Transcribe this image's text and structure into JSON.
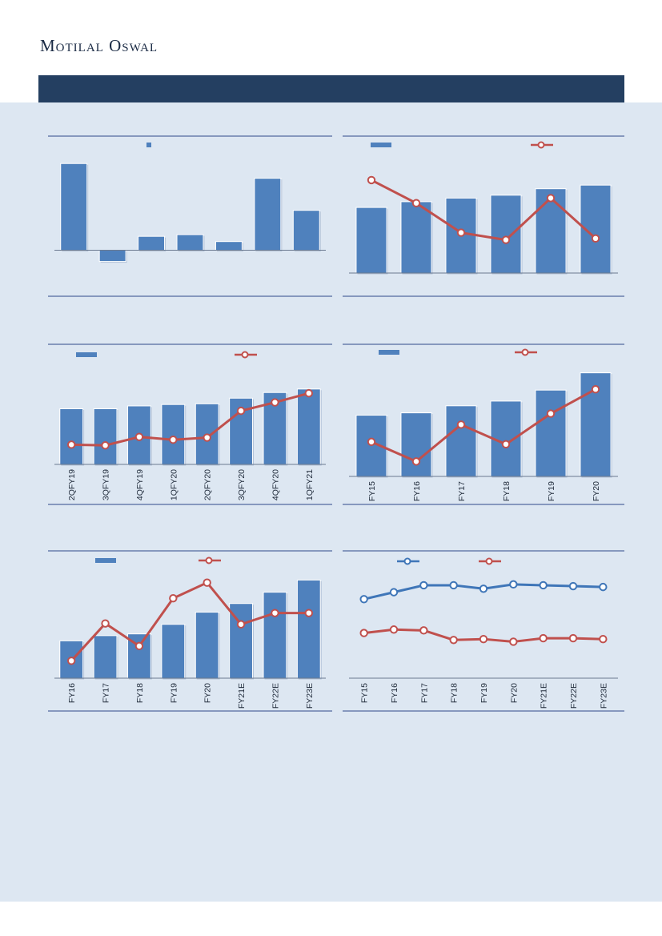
{
  "header": {
    "brand": "Motilal Oswal"
  },
  "chart_data": [
    {
      "type": "bar",
      "categories": [
        "",
        "",
        "",
        "",
        "",
        "",
        ""
      ],
      "values": [
        100,
        -13,
        16,
        18,
        10,
        83,
        46
      ],
      "ylim": [
        -30,
        115
      ]
    },
    {
      "type": "bar+line",
      "categories": [
        "",
        "",
        "",
        "",
        "",
        ""
      ],
      "series": [
        {
          "kind": "bar",
          "values": [
            91,
            99,
            104,
            108,
            117,
            122
          ]
        },
        {
          "kind": "line",
          "values": [
            129,
            97,
            56,
            46,
            104,
            48
          ]
        }
      ],
      "ylim": [
        0,
        170
      ]
    },
    {
      "type": "bar+line",
      "categories": [
        "2QFY19",
        "3QFY19",
        "4QFY19",
        "1QFY20",
        "2QFY20",
        "3QFY20",
        "4QFY20",
        "1QFY21"
      ],
      "series": [
        {
          "kind": "bar",
          "values": [
            79,
            79,
            83,
            85,
            86,
            94,
            102,
            107
          ]
        },
        {
          "kind": "line",
          "values": [
            28,
            27,
            39,
            35,
            38,
            76,
            88,
            101
          ]
        }
      ],
      "ylim": [
        0,
        150
      ]
    },
    {
      "type": "bar+line",
      "categories": [
        "FY15",
        "FY16",
        "FY17",
        "FY18",
        "FY19",
        "FY20"
      ],
      "series": [
        {
          "kind": "bar",
          "values": [
            78,
            81,
            90,
            96,
            110,
            132
          ]
        },
        {
          "kind": "line",
          "values": [
            44,
            19,
            66,
            41,
            80,
            111
          ]
        }
      ],
      "ylim": [
        0,
        150
      ]
    },
    {
      "type": "bar+line",
      "categories": [
        "FY16",
        "FY17",
        "FY18",
        "FY19",
        "FY20",
        "FY21E",
        "FY22E",
        "FY23E"
      ],
      "series": [
        {
          "kind": "bar",
          "values": [
            43,
            49,
            51,
            62,
            76,
            86,
            99,
            113
          ]
        },
        {
          "kind": "line",
          "values": [
            20,
            63,
            37,
            92,
            110,
            62,
            75,
            75
          ]
        }
      ],
      "ylim": [
        0,
        130
      ]
    },
    {
      "type": "line",
      "categories": [
        "FY15",
        "FY16",
        "FY17",
        "FY18",
        "FY19",
        "FY20",
        "FY21E",
        "FY22E",
        "FY23E"
      ],
      "series": [
        {
          "kind": "line",
          "color": "#3f76b8",
          "values": [
            91,
            99,
            107,
            107,
            103,
            108,
            107,
            106,
            105
          ]
        },
        {
          "kind": "line",
          "color": "#c0504d",
          "values": [
            52,
            56,
            55,
            44,
            45,
            42,
            46,
            46,
            45
          ]
        }
      ],
      "ylim": [
        0,
        130
      ]
    }
  ]
}
